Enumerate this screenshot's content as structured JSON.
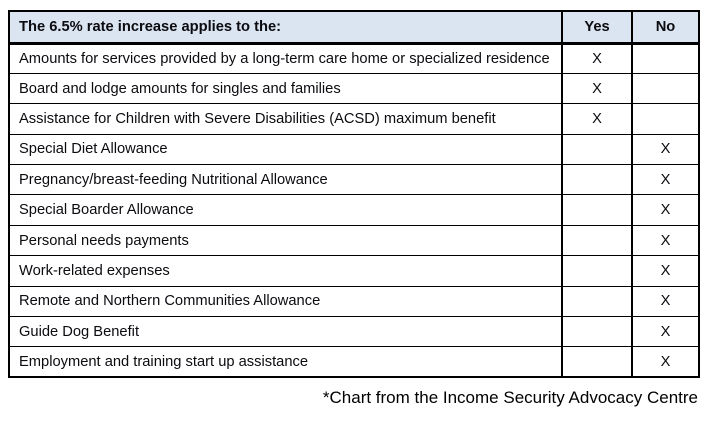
{
  "table": {
    "header": {
      "title": "The 6.5% rate increase applies to the:",
      "yes": "Yes",
      "no": "No"
    },
    "rows": [
      {
        "label": "Amounts for services provided by a long-term care home or specialized residence",
        "yes": "X",
        "no": ""
      },
      {
        "label": "Board and lodge amounts for singles and families",
        "yes": "X",
        "no": ""
      },
      {
        "label": "Assistance for Children with Severe Disabilities (ACSD) maximum benefit",
        "yes": "X",
        "no": ""
      },
      {
        "label": "Special Diet Allowance",
        "yes": "",
        "no": "X"
      },
      {
        "label": "Pregnancy/breast-feeding Nutritional Allowance",
        "yes": "",
        "no": "X"
      },
      {
        "label": "Special Boarder Allowance",
        "yes": "",
        "no": "X"
      },
      {
        "label": "Personal needs payments",
        "yes": "",
        "no": "X"
      },
      {
        "label": "Work-related expenses",
        "yes": "",
        "no": "X"
      },
      {
        "label": "Remote and Northern Communities Allowance",
        "yes": "",
        "no": "X"
      },
      {
        "label": "Guide Dog Benefit",
        "yes": "",
        "no": "X"
      },
      {
        "label": "Employment and training start up assistance",
        "yes": "",
        "no": "X"
      }
    ]
  },
  "footnote": "*Chart from the Income Security Advocacy Centre",
  "colors": {
    "header_bg": "#dbe5f1",
    "border": "#000000",
    "text": "#000000"
  }
}
